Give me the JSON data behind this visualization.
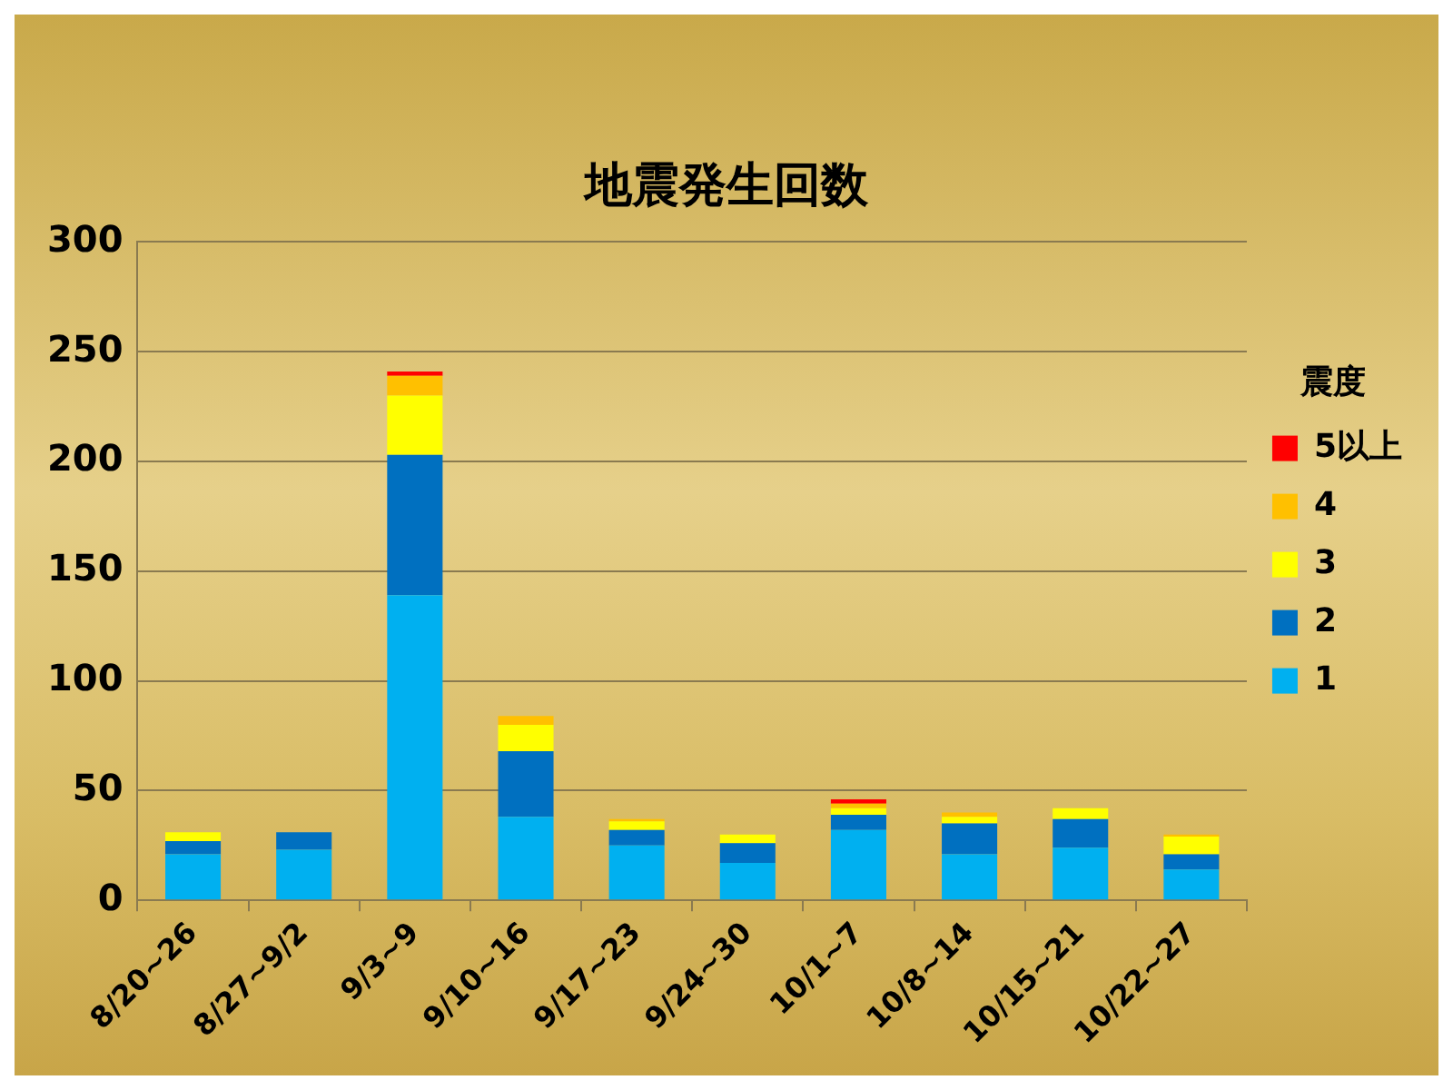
{
  "chart_data": {
    "type": "bar",
    "title": "地震発生回数",
    "legend_title": "震度",
    "categories": [
      "8/20~26",
      "8/27~9/2",
      "9/3~9",
      "9/10~16",
      "9/17~23",
      "9/24~30",
      "10/1~7",
      "10/8~14",
      "10/15~21",
      "10/22~27"
    ],
    "stacked": true,
    "series": [
      {
        "name": "1",
        "color": "#00b0f0",
        "values": [
          21,
          23,
          139,
          38,
          25,
          17,
          32,
          21,
          24,
          14
        ]
      },
      {
        "name": "2",
        "color": "#0070c0",
        "values": [
          6,
          8,
          64,
          30,
          7,
          9,
          7,
          14,
          13,
          7
        ]
      },
      {
        "name": "3",
        "color": "#ffff00",
        "values": [
          4,
          0,
          27,
          12,
          4,
          4,
          3,
          3,
          5,
          8
        ]
      },
      {
        "name": "4",
        "color": "#ffc000",
        "values": [
          0,
          0,
          9,
          4,
          1,
          0,
          2,
          2,
          0,
          1
        ]
      },
      {
        "name": "5以上",
        "color": "#ff0000",
        "values": [
          0,
          0,
          2,
          0,
          0,
          0,
          2,
          0,
          0,
          0
        ]
      }
    ],
    "ylim": [
      0,
      300
    ],
    "yticks": [
      0,
      50,
      100,
      150,
      200,
      250,
      300
    ],
    "grid": "y",
    "legend": "right"
  }
}
